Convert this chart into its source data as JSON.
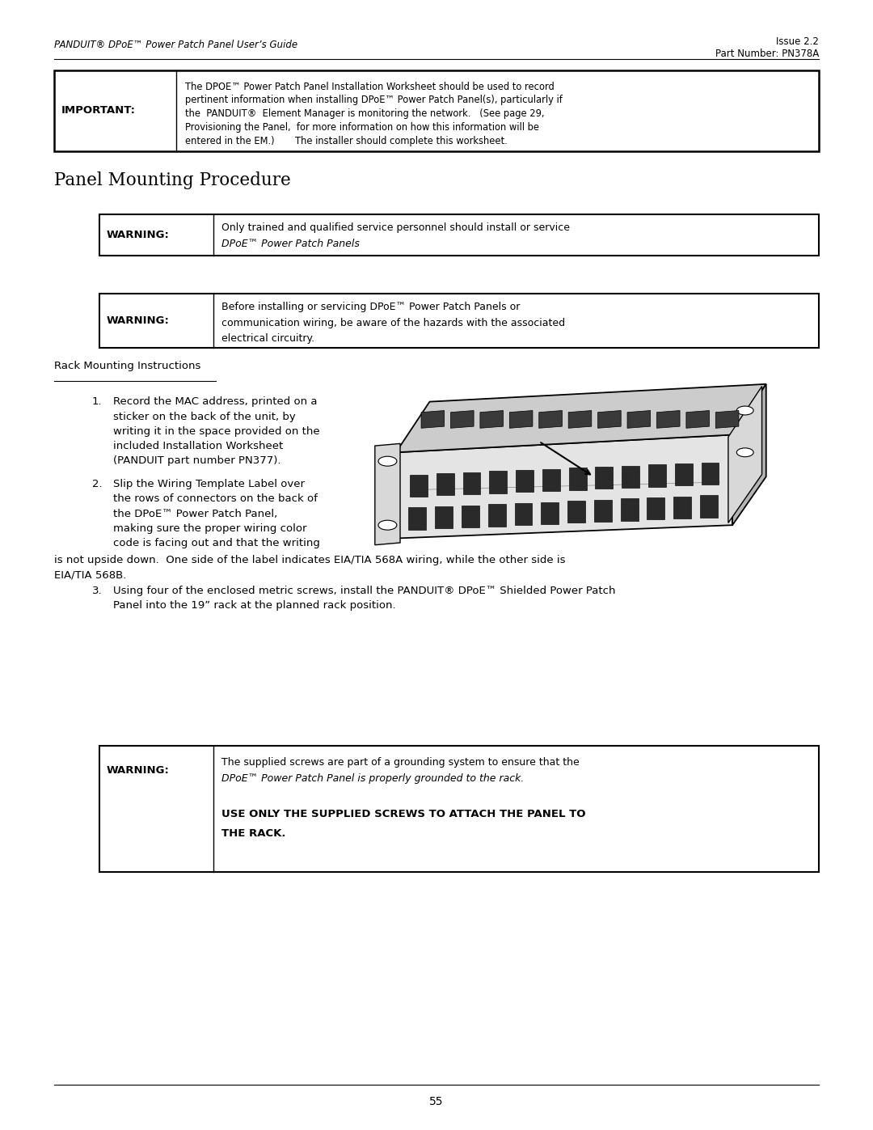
{
  "page_width": 10.8,
  "page_height": 13.97,
  "bg": "#ffffff",
  "header_left": "PANDUIT® DPoE™ Power Patch Panel User’s Guide",
  "header_right1": "Issue 2.2",
  "header_right2": "Part Number: PN378A",
  "footer_num": "55",
  "imp_label": "IMPORTANT:",
  "imp_lines": [
    "The DPOE™ Power Patch Panel Installation Worksheet should be used to record",
    "pertinent information when installing DPoE™ Power Patch Panel(s), particularly if",
    "the  PANDUIT®  Element Manager is monitoring the network.   (See page 29,",
    "Provisioning the Panel,  for more information on how this information will be",
    "entered in the EM.)       The installer should complete this worksheet."
  ],
  "section_title": "Panel Mounting Procedure",
  "warn1_label": "WARNING:",
  "warn1_lines": [
    "Only trained and qualified service personnel should install or service",
    "DPoE™ Power Patch Panels"
  ],
  "warn2_label": "WARNING:",
  "warn2_lines": [
    "Before installing or servicing DPoE™ Power Patch Panels or",
    "communication wiring, be aware of the hazards with the associated",
    "electrical circuitry."
  ],
  "rack_title": "Rack Mounting Instructions",
  "step1": [
    "Record the MAC address, printed on a",
    "sticker on the back of the unit, by",
    "writing it in the space provided on the",
    "included Installation Worksheet",
    "(PANDUIT part number PN377)."
  ],
  "step2": [
    "Slip the Wiring Template Label over",
    "the rows of connectors on the back of",
    "the DPoE™ Power Patch Panel,",
    "making sure the proper wiring color",
    "code is facing out and that the writing"
  ],
  "step2b": "is not upside down.  One side of the label indicates EIA/TIA 568A wiring, while the other side is",
  "step2c": "EIA/TIA 568B.",
  "step3": [
    "Using four of the enclosed metric screws, install the PANDUIT® DPoE™ Shielded Power Patch",
    "Panel into the 19” rack at the planned rack position."
  ],
  "warn3_label": "WARNING:",
  "warn3_line1": "The supplied screws are part of a grounding system to ensure that the",
  "warn3_line2": "DPoE™ Power Patch Panel is properly grounded to the rack.",
  "warn3_bold1": "USE ONLY THE SUPPLIED SCREWS TO ATTACH THE PANEL TO",
  "warn3_bold2": "THE RACK."
}
